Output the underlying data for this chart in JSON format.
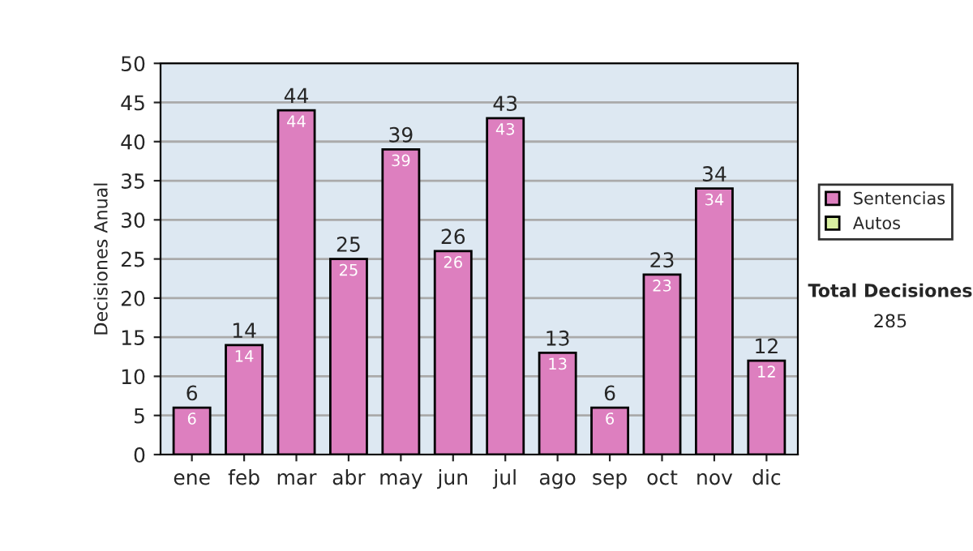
{
  "chart_data": {
    "type": "bar",
    "ylabel": "Decisiones Anual",
    "categories": [
      "ene",
      "feb",
      "mar",
      "abr",
      "may",
      "jun",
      "jul",
      "ago",
      "sep",
      "oct",
      "nov",
      "dic"
    ],
    "series": [
      {
        "name": "Sentencias",
        "color": "#dd7fbf",
        "values": [
          6,
          14,
          44,
          25,
          39,
          26,
          43,
          13,
          6,
          23,
          34,
          12
        ]
      },
      {
        "name": "Autos",
        "color": "#d8f0a0",
        "values": [
          null,
          null,
          null,
          null,
          null,
          null,
          null,
          null,
          null,
          null,
          null,
          null
        ]
      }
    ],
    "stacked": true,
    "data_labels": true,
    "totals": [
      "6",
      "14",
      "44",
      "25",
      "39",
      "26",
      "43",
      "13",
      "6",
      "23",
      "34",
      "12"
    ],
    "ylim": [
      0,
      50
    ],
    "yticks": [
      0,
      5,
      10,
      15,
      20,
      25,
      30,
      35,
      40,
      45,
      50
    ],
    "grid": "y",
    "legend": "right",
    "annotations": [
      "Total Decisiones",
      "285"
    ]
  }
}
